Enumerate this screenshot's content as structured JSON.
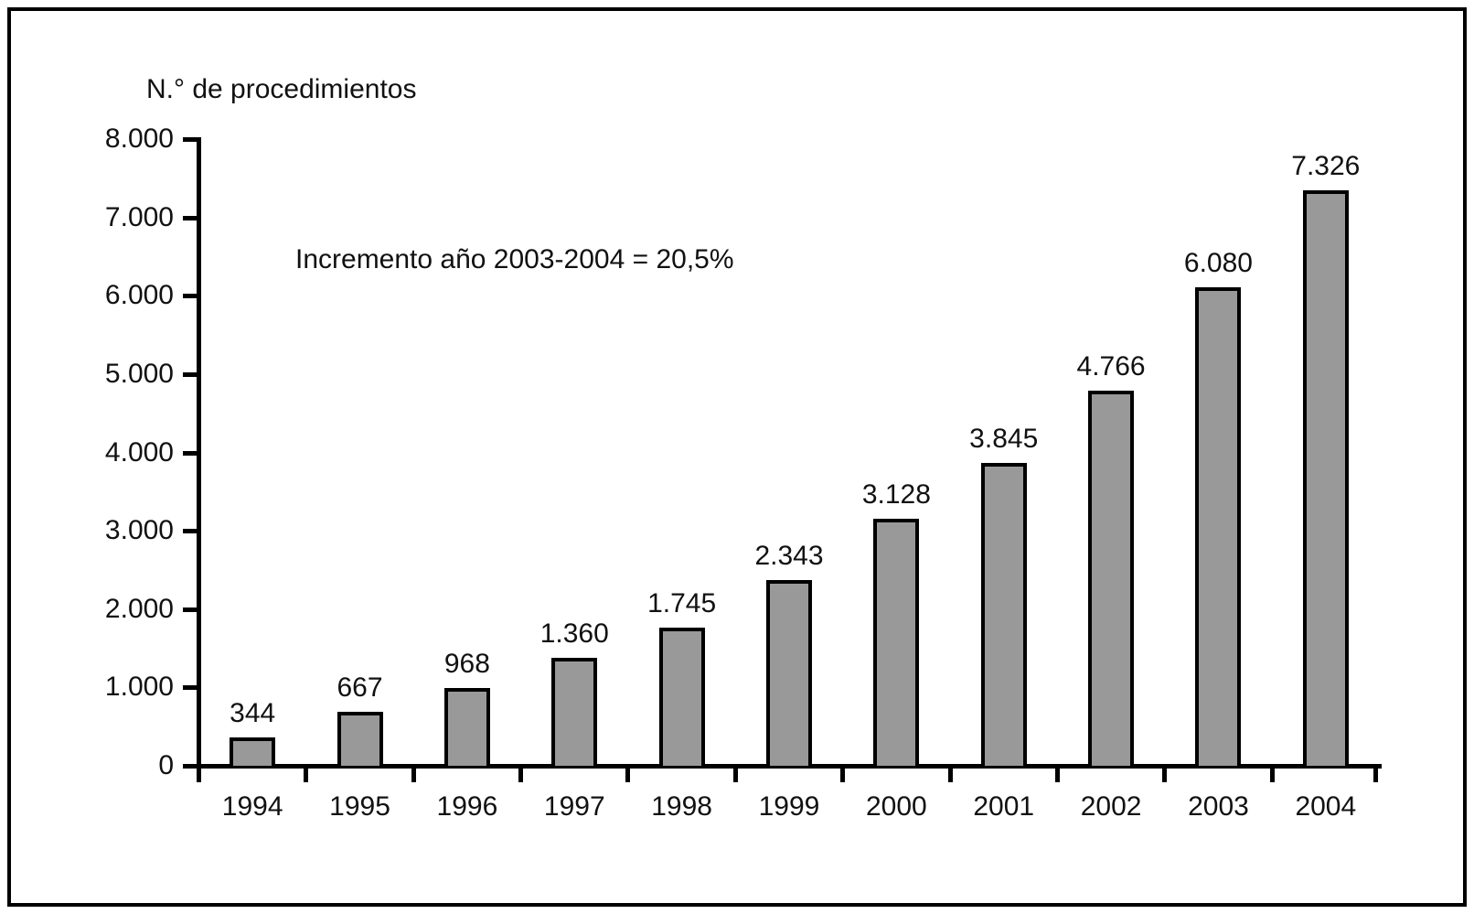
{
  "chart_data": {
    "type": "bar",
    "title": "N.° de procedimientos",
    "annotation": "Incremento año 2003-2004 = 20,5%",
    "categories": [
      "1994",
      "1995",
      "1996",
      "1997",
      "1998",
      "1999",
      "2000",
      "2001",
      "2002",
      "2003",
      "2004"
    ],
    "values": [
      344,
      667,
      968,
      1360,
      1745,
      2343,
      3128,
      3845,
      4766,
      6080,
      7326
    ],
    "bar_labels": [
      "344",
      "667",
      "968",
      "1.360",
      "1.745",
      "2.343",
      "3.128",
      "3.845",
      "4.766",
      "6.080",
      "7.326"
    ],
    "xlabel": "",
    "ylabel": "N.° de procedimientos",
    "ylim": [
      0,
      8000
    ],
    "ytick_step": 1000,
    "ytick_labels": [
      "8.000",
      "7.000",
      "6.000",
      "5.000",
      "4.000",
      "3.000",
      "2.000",
      "1.000",
      "0"
    ],
    "grid": false,
    "legend": false,
    "bar_color": "#999999",
    "bar_border_color": "#000000",
    "text_color": "#111111",
    "frame_color": "#000000"
  }
}
